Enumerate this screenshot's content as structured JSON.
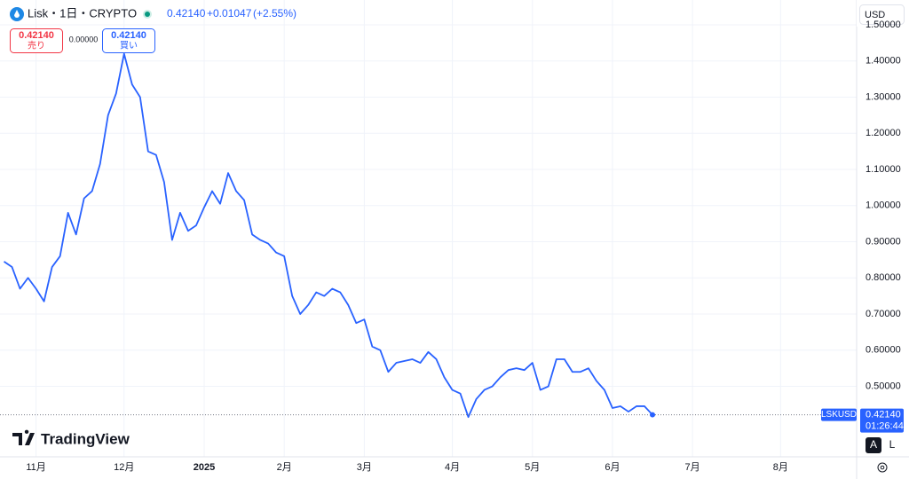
{
  "header": {
    "symbol": "Lisk・1日・CRYPTO",
    "price": "0.42140",
    "change": "+0.01047",
    "change_pct": "(+2.55%)"
  },
  "order_panel": {
    "sell_price": "0.42140",
    "sell_label": "売り",
    "spread": "0.00000",
    "buy_price": "0.42140",
    "buy_label": "買い"
  },
  "currency": "USD",
  "price_tag": {
    "ticker": "LSKUSD",
    "price": "0.42140",
    "countdown": "01:26:44"
  },
  "logo": "TradingView",
  "scale_buttons": [
    "A",
    "L"
  ],
  "chart_data": {
    "type": "line",
    "categories": [
      null,
      null,
      null,
      null,
      "11月",
      null,
      null,
      null,
      null,
      null,
      null,
      null,
      null,
      null,
      null,
      "12月",
      null,
      null,
      null,
      null,
      null,
      null,
      null,
      null,
      null,
      "2025",
      null,
      null,
      null,
      null,
      null,
      null,
      null,
      null,
      null,
      "2月",
      null,
      null,
      null,
      null,
      null,
      null,
      null,
      null,
      null,
      "3月",
      null,
      null,
      null,
      null,
      null,
      null,
      null,
      null,
      null,
      null,
      "4月",
      null,
      null,
      null,
      null,
      null,
      null,
      null,
      null,
      null,
      "5月",
      null,
      null,
      null,
      null,
      null,
      null,
      null,
      null,
      null,
      "6月",
      null,
      null,
      null,
      null,
      null,
      null,
      null,
      null,
      null,
      "7月",
      null,
      null,
      null,
      null,
      null,
      null,
      null,
      null,
      null,
      null,
      "8月",
      null,
      null,
      null,
      null,
      null,
      null,
      null,
      null,
      null
    ],
    "series": [
      {
        "name": "LSKUSD",
        "color": "#2962ff",
        "values": [
          0.845,
          0.83,
          0.77,
          0.8,
          0.77,
          0.735,
          0.83,
          0.86,
          0.98,
          0.92,
          1.02,
          1.04,
          1.115,
          1.25,
          1.31,
          1.42,
          1.335,
          1.3,
          1.15,
          1.14,
          1.065,
          0.905,
          0.98,
          0.93,
          0.945,
          0.995,
          1.04,
          1.005,
          1.09,
          1.04,
          1.015,
          0.92,
          0.905,
          0.895,
          0.87,
          0.86,
          0.75,
          0.7,
          0.725,
          0.76,
          0.75,
          0.77,
          0.76,
          0.725,
          0.675,
          0.685,
          0.61,
          0.6,
          0.54,
          0.565,
          0.57,
          0.575,
          0.565,
          0.595,
          0.575,
          0.525,
          0.49,
          0.48,
          0.415,
          0.465,
          0.49,
          0.5,
          0.525,
          0.545,
          0.55,
          0.545,
          0.565,
          0.49,
          0.5,
          0.575,
          0.575,
          0.54,
          0.54,
          0.55,
          0.515,
          0.49,
          0.44,
          0.445,
          0.43,
          0.445,
          0.445,
          0.4214,
          null,
          null,
          null,
          null,
          null,
          null,
          null,
          null,
          null,
          null,
          null,
          null,
          null,
          null,
          null,
          null,
          null,
          null,
          null,
          null,
          null,
          null,
          null,
          null,
          null
        ]
      }
    ],
    "ylim": [
      0.305,
      1.5
    ],
    "yticks": [
      {
        "value": 0.5,
        "label": "0.50000"
      },
      {
        "value": 0.6,
        "label": "0.60000"
      },
      {
        "value": 0.7,
        "label": "0.70000"
      },
      {
        "value": 0.8,
        "label": "0.80000"
      },
      {
        "value": 0.9,
        "label": "0.90000"
      },
      {
        "value": 1.0,
        "label": "1.00000"
      },
      {
        "value": 1.1,
        "label": "1.10000"
      },
      {
        "value": 1.2,
        "label": "1.20000"
      },
      {
        "value": 1.3,
        "label": "1.30000"
      },
      {
        "value": 1.4,
        "label": "1.40000"
      },
      {
        "value": 1.5,
        "label": "1.50000"
      }
    ],
    "grid": true
  }
}
